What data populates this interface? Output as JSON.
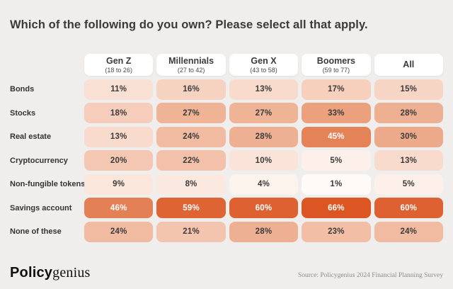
{
  "title": "Which of the following do you own? Please select all that apply.",
  "chart_data": {
    "type": "heatmap",
    "unit": "%",
    "columns": [
      {
        "label": "Gen Z",
        "sublabel": "(18 to 26)"
      },
      {
        "label": "Millennials",
        "sublabel": "(27 to 42)"
      },
      {
        "label": "Gen X",
        "sublabel": "(43 to 58)"
      },
      {
        "label": "Boomers",
        "sublabel": "(59 to 77)"
      },
      {
        "label": "All",
        "sublabel": ""
      }
    ],
    "rows": [
      {
        "label": "Bonds",
        "values": [
          11,
          16,
          13,
          17,
          15
        ]
      },
      {
        "label": "Stocks",
        "values": [
          18,
          27,
          27,
          33,
          28
        ]
      },
      {
        "label": "Real estate",
        "values": [
          13,
          24,
          28,
          45,
          30
        ]
      },
      {
        "label": "Cryptocurrency",
        "values": [
          20,
          22,
          10,
          5,
          13
        ]
      },
      {
        "label": "Non-fungible tokens",
        "values": [
          9,
          8,
          4,
          1,
          5
        ]
      },
      {
        "label": "Savings account",
        "values": [
          46,
          59,
          60,
          66,
          60
        ]
      },
      {
        "label": "None of these",
        "values": [
          24,
          21,
          28,
          23,
          24
        ]
      }
    ],
    "color_scale": {
      "stops": [
        [
          0,
          "#FFFDFB"
        ],
        [
          10,
          "#FAE3D8"
        ],
        [
          20,
          "#F4C7B2"
        ],
        [
          33,
          "#EBA17E"
        ],
        [
          46,
          "#E48055"
        ],
        [
          60,
          "#DE6231"
        ],
        [
          66,
          "#DB5622"
        ]
      ],
      "white_text_threshold": 45,
      "white_text_color": "#FFFFFF",
      "dark_text_color": "#3C3B3B"
    },
    "legend_position": "none",
    "grid": false
  },
  "footer": {
    "logo_bold": "Policy",
    "logo_serif": "genius",
    "source": "Source: Policygenius 2024 Financial Planning Survey"
  }
}
